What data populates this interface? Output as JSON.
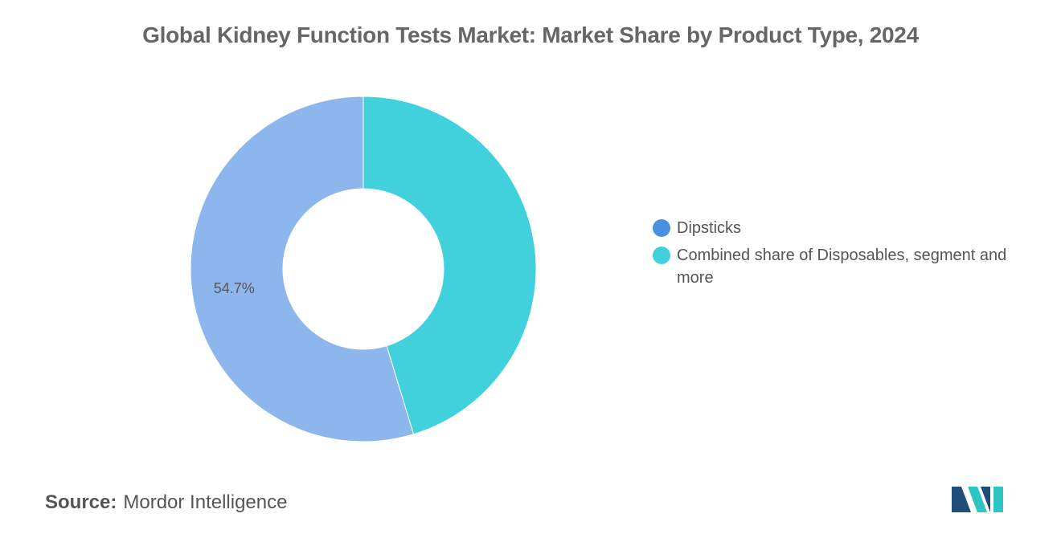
{
  "title": "Global Kidney Function Tests Market: Market Share by Product Type, 2024",
  "source": {
    "label": "Source:",
    "name": "Mordor Intelligence"
  },
  "colors": {
    "Dipsticks": "#8db7ec",
    "Combined share of Disposables, segment and more": "#41d1dc",
    "legend_dipsticks": "#4a90e2",
    "legend_combined": "#41d1dc",
    "logo_dark": "#1f4e79",
    "logo_teal": "#2ec4c4"
  },
  "legend": [
    {
      "label": "Dipsticks",
      "color_key": "legend_dipsticks"
    },
    {
      "label": "Combined share of Disposables, segment and more",
      "color_key": "legend_combined"
    }
  ],
  "chart_data": {
    "type": "pie",
    "variant": "donut",
    "title": "Global Kidney Function Tests Market: Market Share by Product Type, 2024",
    "slices": [
      {
        "label": "Dipsticks",
        "value": 54.7,
        "data_label": "54.7%"
      },
      {
        "label": "Combined share of Disposables, segment and more",
        "value": 45.3,
        "data_label": ""
      }
    ],
    "legend_position": "right"
  }
}
